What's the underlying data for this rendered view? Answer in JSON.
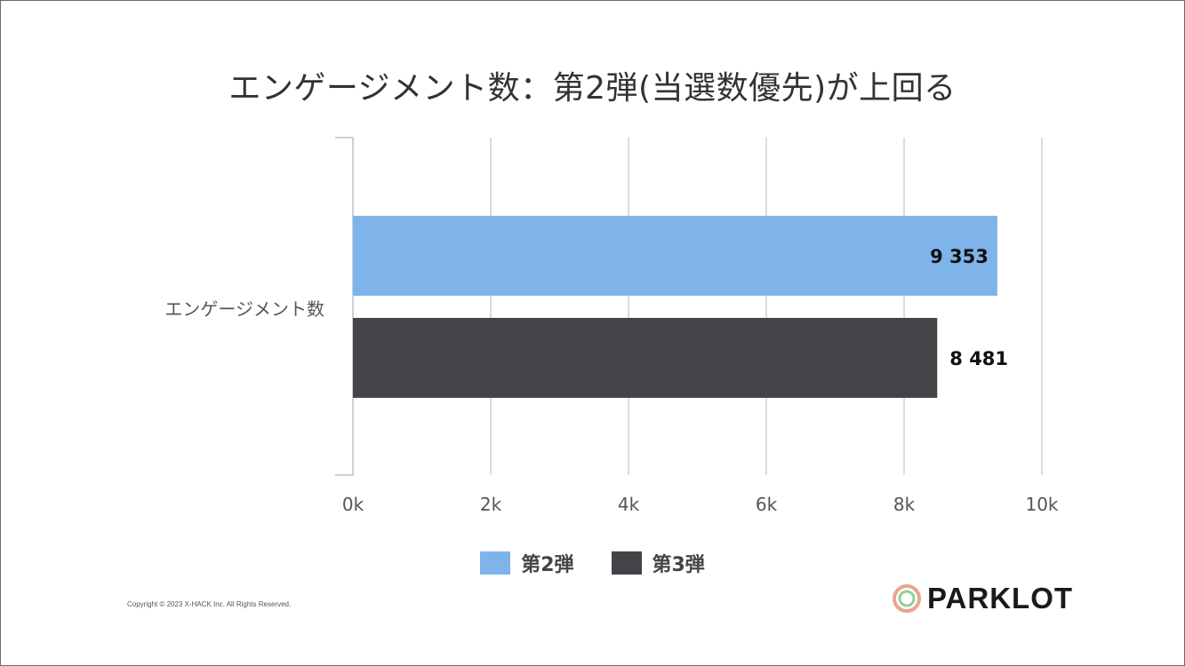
{
  "chart_data": {
    "type": "bar",
    "orientation": "horizontal",
    "title": "エンゲージメント数：第2弾(当選数優先)が上回る",
    "categories": [
      "エンゲージメント数"
    ],
    "series": [
      {
        "name": "第2弾",
        "values": [
          9353
        ],
        "label": "9 353",
        "color": "#7eb4ea"
      },
      {
        "name": "第3弾",
        "values": [
          8481
        ],
        "label": "8 481",
        "color": "#434348"
      }
    ],
    "xlim": [
      0,
      10000
    ],
    "x_ticks": [
      "0k",
      "2k",
      "4k",
      "6k",
      "8k",
      "10k"
    ],
    "grid": true,
    "legend_position": "bottom"
  },
  "footer": {
    "copyright": "Copyright © 2023 X-HACK Inc. All Rights Reserved.",
    "logo_text": "PARKLOT"
  }
}
